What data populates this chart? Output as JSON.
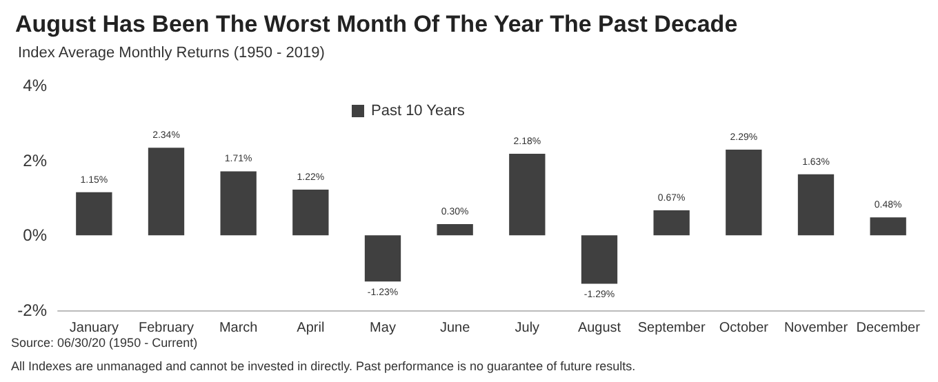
{
  "chart_data": {
    "type": "bar",
    "title": "August Has Been The Worst Month Of The Year The Past Decade",
    "subtitle": "Index Average Monthly Returns (1950 - 2019)",
    "categories": [
      "January",
      "February",
      "March",
      "April",
      "May",
      "June",
      "July",
      "August",
      "September",
      "October",
      "November",
      "December"
    ],
    "series": [
      {
        "name": "Past 10 Years",
        "color": "#404040",
        "values": [
          1.15,
          2.34,
          1.71,
          1.22,
          -1.23,
          0.3,
          2.18,
          -1.29,
          0.67,
          2.29,
          1.63,
          0.48
        ],
        "value_labels": [
          "1.15%",
          "2.34%",
          "1.71%",
          "1.22%",
          "-1.23%",
          "0.30%",
          "2.18%",
          "-1.29%",
          "0.67%",
          "2.29%",
          "1.63%",
          "0.48%"
        ]
      }
    ],
    "ylim": [
      -2,
      4
    ],
    "yticks": [
      {
        "value": -2,
        "label": "-2%"
      },
      {
        "value": 0,
        "label": "0%"
      },
      {
        "value": 2,
        "label": "2%"
      },
      {
        "value": 4,
        "label": "4%"
      }
    ],
    "grid": false,
    "legend": "top",
    "annotations": [
      "Source: 06/30/20 (1950 - Current)",
      "All Indexes are unmanaged and cannot be invested in directly. Past performance is no guarantee of future results."
    ]
  }
}
